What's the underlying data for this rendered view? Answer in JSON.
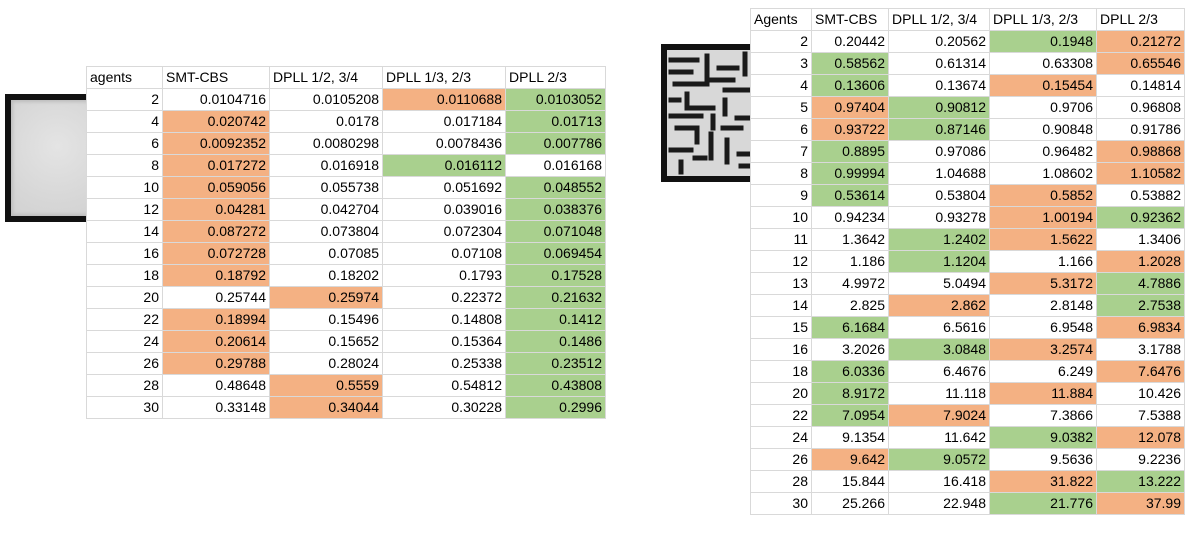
{
  "left_table": {
    "header": [
      "agents",
      "SMT-CBS",
      "DPLL 1/2, 3/4",
      "DPLL 1/3, 2/3",
      "DPLL 2/3"
    ],
    "rows": [
      {
        "cells": [
          "2",
          "0.0104716",
          "0.0105208",
          "0.0110688",
          "0.0103052"
        ],
        "colors": [
          "",
          "",
          "",
          "o",
          "g"
        ]
      },
      {
        "cells": [
          "4",
          "0.020742",
          "0.0178",
          "0.017184",
          "0.01713"
        ],
        "colors": [
          "",
          "o",
          "",
          "",
          "g"
        ]
      },
      {
        "cells": [
          "6",
          "0.0092352",
          "0.0080298",
          "0.0078436",
          "0.007786"
        ],
        "colors": [
          "",
          "o",
          "",
          "",
          "g"
        ]
      },
      {
        "cells": [
          "8",
          "0.017272",
          "0.016918",
          "0.016112",
          "0.016168"
        ],
        "colors": [
          "",
          "o",
          "",
          "g",
          ""
        ]
      },
      {
        "cells": [
          "10",
          "0.059056",
          "0.055738",
          "0.051692",
          "0.048552"
        ],
        "colors": [
          "",
          "o",
          "",
          "",
          "g"
        ]
      },
      {
        "cells": [
          "12",
          "0.04281",
          "0.042704",
          "0.039016",
          "0.038376"
        ],
        "colors": [
          "",
          "o",
          "",
          "",
          "g"
        ]
      },
      {
        "cells": [
          "14",
          "0.087272",
          "0.073804",
          "0.072304",
          "0.071048"
        ],
        "colors": [
          "",
          "o",
          "",
          "",
          "g"
        ]
      },
      {
        "cells": [
          "16",
          "0.072728",
          "0.07085",
          "0.07108",
          "0.069454"
        ],
        "colors": [
          "",
          "o",
          "",
          "",
          "g"
        ]
      },
      {
        "cells": [
          "18",
          "0.18792",
          "0.18202",
          "0.1793",
          "0.17528"
        ],
        "colors": [
          "",
          "o",
          "",
          "",
          "g"
        ]
      },
      {
        "cells": [
          "20",
          "0.25744",
          "0.25974",
          "0.22372",
          "0.21632"
        ],
        "colors": [
          "",
          "",
          "o",
          "",
          "g"
        ]
      },
      {
        "cells": [
          "22",
          "0.18994",
          "0.15496",
          "0.14808",
          "0.1412"
        ],
        "colors": [
          "",
          "o",
          "",
          "",
          "g"
        ]
      },
      {
        "cells": [
          "24",
          "0.20614",
          "0.15652",
          "0.15364",
          "0.1486"
        ],
        "colors": [
          "",
          "o",
          "",
          "",
          "g"
        ]
      },
      {
        "cells": [
          "26",
          "0.29788",
          "0.28024",
          "0.25338",
          "0.23512"
        ],
        "colors": [
          "",
          "o",
          "",
          "",
          "g"
        ]
      },
      {
        "cells": [
          "28",
          "0.48648",
          "0.5559",
          "0.54812",
          "0.43808"
        ],
        "colors": [
          "",
          "",
          "o",
          "",
          "g"
        ]
      },
      {
        "cells": [
          "30",
          "0.33148",
          "0.34044",
          "0.30228",
          "0.2996"
        ],
        "colors": [
          "",
          "",
          "o",
          "",
          "g"
        ]
      }
    ]
  },
  "right_table": {
    "header": [
      "Agents",
      "SMT-CBS",
      "DPLL 1/2, 3/4",
      "DPLL 1/3, 2/3",
      "DPLL 2/3"
    ],
    "rows": [
      {
        "cells": [
          "2",
          "0.20442",
          "0.20562",
          "0.1948",
          "0.21272"
        ],
        "colors": [
          "",
          "",
          "",
          "g",
          "o"
        ]
      },
      {
        "cells": [
          "3",
          "0.58562",
          "0.61314",
          "0.63308",
          "0.65546"
        ],
        "colors": [
          "",
          "g",
          "",
          "",
          "o"
        ]
      },
      {
        "cells": [
          "4",
          "0.13606",
          "0.13674",
          "0.15454",
          "0.14814"
        ],
        "colors": [
          "",
          "g",
          "",
          "o",
          ""
        ]
      },
      {
        "cells": [
          "5",
          "0.97404",
          "0.90812",
          "0.9706",
          "0.96808"
        ],
        "colors": [
          "",
          "o",
          "g",
          "",
          ""
        ]
      },
      {
        "cells": [
          "6",
          "0.93722",
          "0.87146",
          "0.90848",
          "0.91786"
        ],
        "colors": [
          "",
          "o",
          "g",
          "",
          ""
        ]
      },
      {
        "cells": [
          "7",
          "0.8895",
          "0.97086",
          "0.96482",
          "0.98868"
        ],
        "colors": [
          "",
          "g",
          "",
          "",
          "o"
        ]
      },
      {
        "cells": [
          "8",
          "0.99994",
          "1.04688",
          "1.08602",
          "1.10582"
        ],
        "colors": [
          "",
          "g",
          "",
          "",
          "o"
        ]
      },
      {
        "cells": [
          "9",
          "0.53614",
          "0.53804",
          "0.5852",
          "0.53882"
        ],
        "colors": [
          "",
          "g",
          "",
          "o",
          ""
        ]
      },
      {
        "cells": [
          "10",
          "0.94234",
          "0.93278",
          "1.00194",
          "0.92362"
        ],
        "colors": [
          "",
          "",
          "",
          "o",
          "g"
        ]
      },
      {
        "cells": [
          "11",
          "1.3642",
          "1.2402",
          "1.5622",
          "1.3406"
        ],
        "colors": [
          "",
          "",
          "g",
          "o",
          ""
        ]
      },
      {
        "cells": [
          "12",
          "1.186",
          "1.1204",
          "1.166",
          "1.2028"
        ],
        "colors": [
          "",
          "",
          "g",
          "",
          "o"
        ]
      },
      {
        "cells": [
          "13",
          "4.9972",
          "5.0494",
          "5.3172",
          "4.7886"
        ],
        "colors": [
          "",
          "",
          "",
          "o",
          "g"
        ]
      },
      {
        "cells": [
          "14",
          "2.825",
          "2.862",
          "2.8148",
          "2.7538"
        ],
        "colors": [
          "",
          "",
          "o",
          "",
          "g"
        ]
      },
      {
        "cells": [
          "15",
          "6.1684",
          "6.5616",
          "6.9548",
          "6.9834"
        ],
        "colors": [
          "",
          "g",
          "",
          "",
          "o"
        ]
      },
      {
        "cells": [
          "16",
          "3.2026",
          "3.0848",
          "3.2574",
          "3.1788"
        ],
        "colors": [
          "",
          "",
          "g",
          "o",
          ""
        ]
      },
      {
        "cells": [
          "18",
          "6.0336",
          "6.4676",
          "6.249",
          "7.6476"
        ],
        "colors": [
          "",
          "g",
          "",
          "",
          "o"
        ]
      },
      {
        "cells": [
          "20",
          "8.9172",
          "11.118",
          "11.884",
          "10.426"
        ],
        "colors": [
          "",
          "g",
          "",
          "o",
          ""
        ]
      },
      {
        "cells": [
          "22",
          "7.0954",
          "7.9024",
          "7.3866",
          "7.5388"
        ],
        "colors": [
          "",
          "g",
          "o",
          "",
          ""
        ]
      },
      {
        "cells": [
          "24",
          "9.1354",
          "11.642",
          "9.0382",
          "12.078"
        ],
        "colors": [
          "",
          "",
          "",
          "g",
          "o"
        ]
      },
      {
        "cells": [
          "26",
          "9.642",
          "9.0572",
          "9.5636",
          "9.2236"
        ],
        "colors": [
          "",
          "o",
          "g",
          "",
          ""
        ]
      },
      {
        "cells": [
          "28",
          "15.844",
          "16.418",
          "31.822",
          "13.222"
        ],
        "colors": [
          "",
          "",
          "",
          "o",
          "g"
        ]
      },
      {
        "cells": [
          "30",
          "25.266",
          "22.948",
          "21.776",
          "37.99"
        ],
        "colors": [
          "",
          "",
          "",
          "g",
          "o"
        ]
      }
    ]
  },
  "colors": {
    "orange": "#f4b183",
    "green": "#a9d08e",
    "gridline": "#d9d9d9"
  },
  "maps": {
    "left_icon": "empty-grid-map-icon",
    "right_icon": "maze-map-icon"
  }
}
